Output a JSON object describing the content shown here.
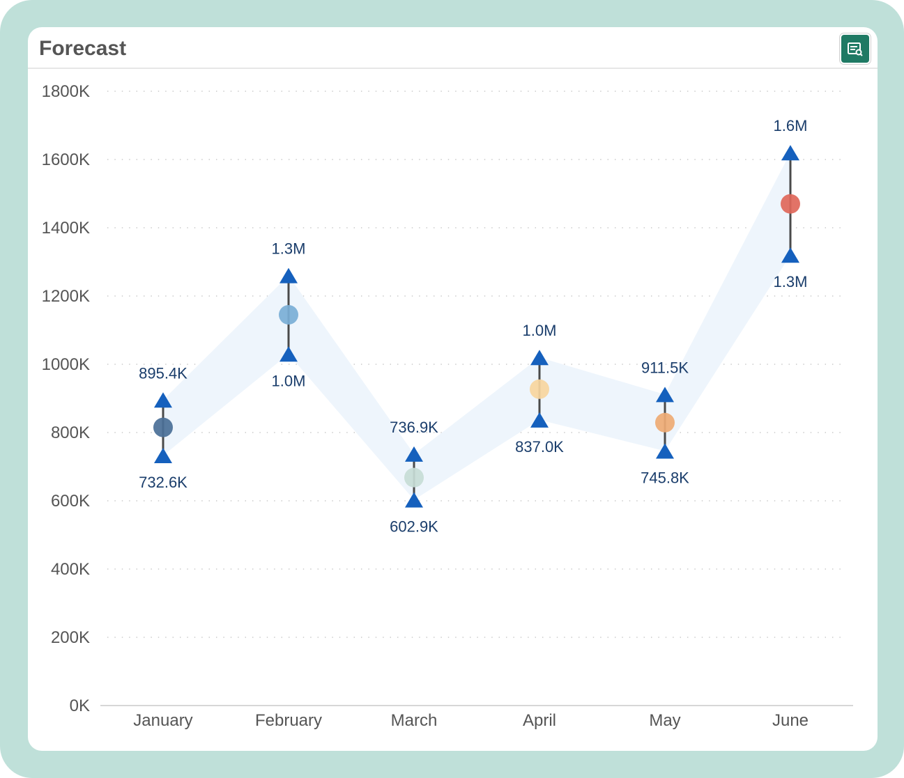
{
  "panel": {
    "title": "Forecast",
    "export_icon": "report-export-icon"
  },
  "chart_data": {
    "type": "scatter",
    "categories": [
      "January",
      "February",
      "March",
      "April",
      "May",
      "June"
    ],
    "forecast": [
      815000,
      1145000,
      668000,
      927000,
      829000,
      1470000
    ],
    "upper": [
      895400,
      1260000,
      736900,
      1020000,
      911500,
      1620000
    ],
    "lower": [
      732600,
      1030000,
      602900,
      837000,
      745800,
      1320000
    ],
    "upper_labels": [
      "895.4K",
      "1.3M",
      "736.9K",
      "1.0M",
      "911.5K",
      "1.6M"
    ],
    "lower_labels": [
      "732.6K",
      "1.0M",
      "602.9K",
      "837.0K",
      "745.8K",
      "1.3M"
    ],
    "point_colors": [
      "#4a6f97",
      "#7aaed6",
      "#c7dcd6",
      "#f7d59e",
      "#eeaa74",
      "#e0675a"
    ],
    "marker_color": "#1560bd",
    "band_color": "#eef5fc",
    "ylim": [
      0,
      1800000
    ],
    "yticks": [
      0,
      200000,
      400000,
      600000,
      800000,
      1000000,
      1200000,
      1400000,
      1600000,
      1800000
    ],
    "ytick_labels": [
      "0K",
      "200K",
      "400K",
      "600K",
      "800K",
      "1000K",
      "1200K",
      "1400K",
      "1600K",
      "1800K"
    ],
    "grid": true,
    "legend": "none"
  }
}
